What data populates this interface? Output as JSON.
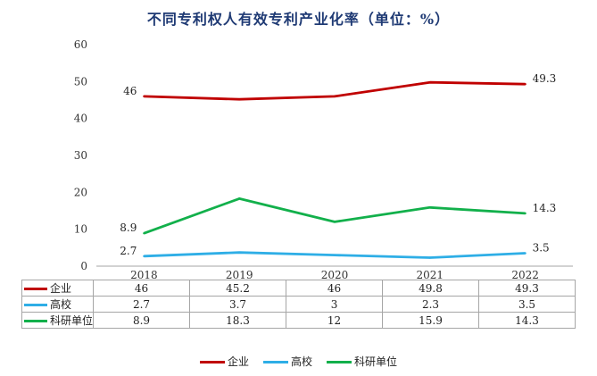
{
  "chart_data": {
    "type": "line",
    "title": "不同专利权人有效专利产业化率（单位：%）",
    "categories": [
      "2018",
      "2019",
      "2020",
      "2021",
      "2022"
    ],
    "ylim": [
      0,
      60
    ],
    "yticks": [
      0,
      10,
      20,
      30,
      40,
      50,
      60
    ],
    "grid": false,
    "legend_position": "bottom",
    "series": [
      {
        "name": "企业",
        "color": "#c00000",
        "values": [
          46,
          45.2,
          46,
          49.8,
          49.3
        ],
        "value_labels": [
          "46",
          "",
          "",
          "",
          "49.3"
        ],
        "table_values": [
          "46",
          "45.2",
          "46",
          "49.8",
          "49.3"
        ]
      },
      {
        "name": "高校",
        "color": "#2eaee6",
        "values": [
          2.7,
          3.7,
          3,
          2.3,
          3.5
        ],
        "value_labels": [
          "2.7",
          "",
          "",
          "",
          "3.5"
        ],
        "table_values": [
          "2.7",
          "3.7",
          "3",
          "2.3",
          "3.5"
        ]
      },
      {
        "name": "科研单位",
        "color": "#12b04b",
        "values": [
          8.9,
          18.3,
          12,
          15.9,
          14.3
        ],
        "value_labels": [
          "8.9",
          "",
          "",
          "",
          "14.3"
        ],
        "table_values": [
          "8.9",
          "18.3",
          "12",
          "15.9",
          "14.3"
        ]
      }
    ]
  }
}
